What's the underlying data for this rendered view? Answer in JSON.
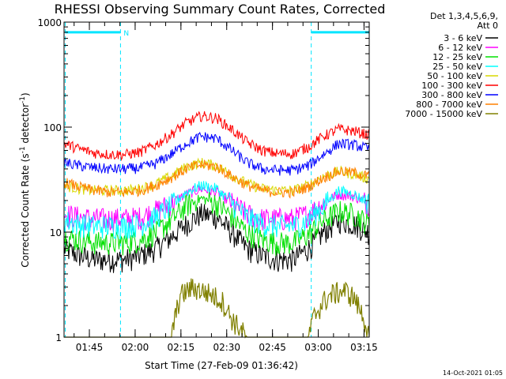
{
  "chart_data": {
    "type": "line",
    "title": "RHESSI Observing Summary Count Rates, Corrected",
    "xlabel": "Start Time (27-Feb-09 01:36:42)",
    "ylabel": "Corrected Count Rate (s⁻¹ detector⁻¹)",
    "ylabel_main": "Corrected Count Rate (s",
    "ylabel_sup1": "-1",
    "ylabel_mid": " detector",
    "ylabel_sup2": "-1",
    "ylabel_end": ")",
    "y_scale": "log",
    "ylim": [
      1,
      1000
    ],
    "y_ticks": [
      {
        "value": 1,
        "label": "1"
      },
      {
        "value": 10,
        "label": "10"
      },
      {
        "value": 100,
        "label": "100"
      },
      {
        "value": 1000,
        "label": "1000"
      }
    ],
    "x_start_time": "01:36:42",
    "xlim_minutes": [
      0,
      100
    ],
    "x_ticks": [
      {
        "minutes": 8.3,
        "label": "01:45"
      },
      {
        "minutes": 23.3,
        "label": "02:00"
      },
      {
        "minutes": 38.3,
        "label": "02:15"
      },
      {
        "minutes": 53.3,
        "label": "02:30"
      },
      {
        "minutes": 68.3,
        "label": "02:45"
      },
      {
        "minutes": 83.3,
        "label": "03:00"
      },
      {
        "minutes": 98.3,
        "label": "03:15"
      }
    ],
    "legend_header": [
      "Det 1,3,4,5,6,9,",
      "Att 0"
    ],
    "legend_position": "outside-right",
    "shading_bars": [
      {
        "label": "N",
        "start_minutes": 0.4,
        "end_minutes": 18.5,
        "y": 800
      },
      {
        "label": "",
        "start_minutes": 81.0,
        "end_minutes": 100.0,
        "y": 800
      }
    ],
    "vertical_markers_minutes": [
      0.4,
      18.5,
      81.0,
      100.0
    ],
    "marker_color": "#00e5ff",
    "series": [
      {
        "name": "3 - 6 keV",
        "color": "#000000",
        "x": [
          0,
          5,
          10,
          15,
          20,
          25,
          30,
          35,
          40,
          45,
          50,
          55,
          60,
          65,
          70,
          75,
          80,
          85,
          90,
          95,
          100
        ],
        "values": [
          7,
          6,
          5.5,
          5.5,
          5.5,
          6,
          7,
          9,
          12,
          15,
          14,
          10,
          7,
          6,
          5.5,
          5.5,
          7,
          10,
          13,
          12,
          10
        ]
      },
      {
        "name": "6 - 12 keV",
        "color": "#ff00ff",
        "x": [
          0,
          5,
          10,
          15,
          20,
          25,
          30,
          35,
          40,
          45,
          50,
          55,
          60,
          65,
          70,
          75,
          80,
          85,
          90,
          95,
          100
        ],
        "values": [
          15,
          14,
          13.5,
          13.5,
          13.5,
          14,
          16,
          19,
          23,
          26,
          24,
          19,
          15,
          13.5,
          13.5,
          13.5,
          15,
          19,
          23,
          22,
          19
        ]
      },
      {
        "name": "12 - 25 keV",
        "color": "#00e000",
        "x": [
          0,
          5,
          10,
          15,
          20,
          25,
          30,
          35,
          40,
          45,
          50,
          55,
          60,
          65,
          70,
          75,
          80,
          85,
          90,
          95,
          100
        ],
        "values": [
          9,
          8.5,
          8,
          8,
          8,
          8.5,
          10,
          13,
          18,
          21,
          19,
          14,
          10,
          8.5,
          8,
          8,
          9.5,
          13,
          16,
          15,
          12
        ]
      },
      {
        "name": "25 - 50 keV",
        "color": "#00ffff",
        "x": [
          0,
          5,
          10,
          15,
          20,
          25,
          30,
          35,
          40,
          45,
          50,
          55,
          60,
          65,
          70,
          75,
          80,
          85,
          90,
          95,
          100
        ],
        "values": [
          13,
          12,
          11.5,
          11.5,
          11.5,
          12,
          14,
          18,
          24,
          28,
          26,
          19,
          14,
          12,
          11.5,
          11.5,
          13,
          18,
          25,
          23,
          19
        ]
      },
      {
        "name": "50 - 100 keV",
        "color": "#d8d800",
        "x": [
          0,
          5,
          10,
          15,
          20,
          25,
          30,
          35,
          40,
          45,
          50,
          55,
          60,
          65,
          70,
          75,
          80,
          85,
          90,
          95,
          100
        ],
        "values": [
          28,
          26,
          25,
          25,
          25,
          26,
          29,
          34,
          42,
          46,
          43,
          35,
          29,
          26,
          25,
          25,
          28,
          34,
          38,
          36,
          32
        ]
      },
      {
        "name": "100 - 300 keV",
        "color": "#ff0000",
        "x": [
          0,
          5,
          10,
          15,
          20,
          25,
          30,
          35,
          40,
          45,
          50,
          55,
          60,
          65,
          70,
          75,
          80,
          85,
          90,
          95,
          100
        ],
        "values": [
          70,
          62,
          57,
          55,
          55,
          58,
          68,
          85,
          110,
          128,
          122,
          95,
          72,
          60,
          56,
          56,
          65,
          82,
          96,
          92,
          84
        ]
      },
      {
        "name": "300 - 800 keV",
        "color": "#0000ff",
        "x": [
          0,
          5,
          10,
          15,
          20,
          25,
          30,
          35,
          40,
          45,
          50,
          55,
          60,
          65,
          70,
          75,
          80,
          85,
          90,
          95,
          100
        ],
        "values": [
          46,
          43,
          41,
          40,
          40,
          41,
          45,
          55,
          70,
          82,
          78,
          60,
          46,
          40,
          39,
          39,
          43,
          55,
          70,
          68,
          62
        ]
      },
      {
        "name": "800 - 7000 keV",
        "color": "#ff8000",
        "x": [
          0,
          5,
          10,
          15,
          20,
          25,
          30,
          35,
          40,
          45,
          50,
          55,
          60,
          65,
          70,
          75,
          80,
          85,
          90,
          95,
          100
        ],
        "values": [
          30,
          27,
          25,
          24,
          24,
          25,
          28,
          33,
          40,
          44,
          42,
          34,
          28,
          25,
          24,
          24,
          27,
          33,
          38,
          37,
          34
        ]
      },
      {
        "name": "7000 - 15000 keV",
        "color": "#808000",
        "x": [
          0,
          5,
          10,
          15,
          20,
          25,
          30,
          35,
          38,
          42,
          45,
          48,
          52,
          55,
          60,
          80,
          82,
          85,
          88,
          92,
          95,
          98,
          100
        ],
        "values": [
          1,
          1,
          1,
          1,
          1,
          1,
          1,
          1,
          2.5,
          3,
          2.8,
          2.6,
          2.2,
          1.5,
          1,
          1,
          1.6,
          2.2,
          2.6,
          2.8,
          2.4,
          1.6,
          1
        ]
      }
    ]
  },
  "timestamp": "14-Oct-2021 01:05"
}
